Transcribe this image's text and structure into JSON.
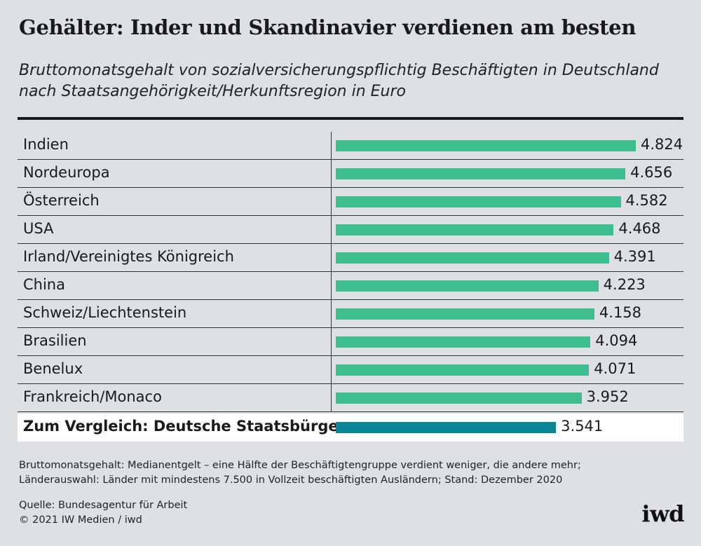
{
  "header": {
    "title": "Gehälter: Inder und Skandinavier verdienen am besten",
    "subtitle_line1": "Bruttomonatsgehalt von sozialversicherungspflichtig Beschäftigten in Deutschland",
    "subtitle_line2": "nach Staatsangehörigkeit/Herkunftsregion in Euro"
  },
  "chart_data": {
    "type": "bar",
    "orientation": "horizontal",
    "title": "Gehälter: Inder und Skandinavier verdienen am besten",
    "subtitle": "Bruttomonatsgehalt von sozialversicherungspflichtig Beschäftigten in Deutschland nach Staatsangehörigkeit/Herkunftsregion in Euro",
    "categories": [
      "Indien",
      "Nordeuropa",
      "Österreich",
      "USA",
      "Irland/Vereinigtes Königreich",
      "China",
      "Schweiz/Liechtenstein",
      "Brasilien",
      "Benelux",
      "Frankreich/Monaco",
      "Zum Vergleich: Deutsche Staatsbürger"
    ],
    "values": [
      4824,
      4656,
      4582,
      4468,
      4391,
      4223,
      4158,
      4094,
      4071,
      3952,
      3541
    ],
    "value_labels": [
      "4.824",
      "4.656",
      "4.582",
      "4.468",
      "4.391",
      "4.223",
      "4.158",
      "4.094",
      "4.071",
      "3.952",
      "3.541"
    ],
    "highlight_category": "Zum Vergleich: Deutsche Staatsbürger",
    "colors": {
      "bar": "#3ebd8f",
      "highlight_bar": "#0b8496"
    },
    "xlabel": "",
    "ylabel": "",
    "xlim": [
      0,
      4824
    ],
    "grid": false,
    "legend": "none"
  },
  "footer": {
    "note_line1": "Bruttomonatsgehalt: Medianentgelt – eine Hälfte der Beschäftigtengruppe verdient weniger, die andere mehr;",
    "note_line2": "Länderauswahl: Länder mit mindestens 7.500 in Vollzeit beschäftigten Ausländern; Stand: Dezember 2020",
    "source_line1": "Quelle: Bundesagentur für Arbeit",
    "source_line2": "© 2021 IW Medien / iwd",
    "logo": "iwd"
  }
}
